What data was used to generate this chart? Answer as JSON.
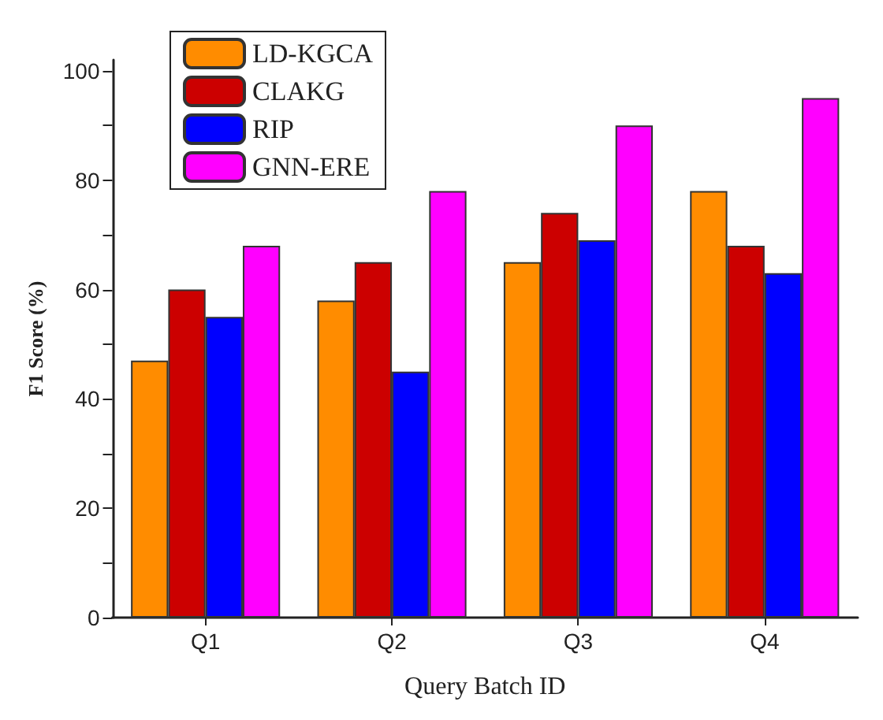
{
  "chart_data": {
    "type": "bar",
    "xlabel": "Query Batch ID",
    "ylabel": "F1 Score (%)",
    "categories": [
      "Q1",
      "Q2",
      "Q3",
      "Q4"
    ],
    "series": [
      {
        "name": "LD-KGCA",
        "color": "#ff8c00",
        "values": [
          47,
          58,
          65,
          78
        ]
      },
      {
        "name": "CLAKG",
        "color": "#cc0000",
        "values": [
          60,
          65,
          74,
          68
        ]
      },
      {
        "name": "RIP",
        "color": "#0000ff",
        "values": [
          55,
          45,
          69,
          63
        ]
      },
      {
        "name": "GNN-ERE",
        "color": "#ff00ff",
        "values": [
          68,
          78,
          90,
          95
        ]
      }
    ],
    "ylim": [
      0,
      102
    ],
    "yticks": [
      0,
      {
        "value": 10,
        "label": null
      },
      20,
      {
        "value": 30,
        "label": null
      },
      40,
      {
        "value": 50,
        "label": null
      },
      60,
      {
        "value": 70,
        "label": null
      },
      80,
      {
        "value": 90,
        "label": null
      },
      100
    ],
    "grid": false,
    "legend": "top left"
  }
}
